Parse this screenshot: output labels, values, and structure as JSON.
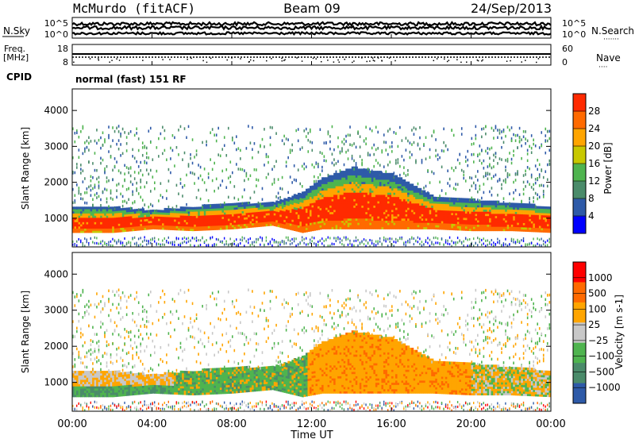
{
  "header": {
    "station": "McMurdo (fitACF)",
    "beam": "Beam 09",
    "date": "24/Sep/2013"
  },
  "top_panels": {
    "nsky_label": "N.Sky",
    "nsearch_label": "N.Search",
    "nsky_ticks": [
      "10^5",
      "10^0"
    ],
    "nsearch_ticks": [
      "10^5",
      "10^0"
    ],
    "freq_label_1": "Freq.",
    "freq_label_2": "[MHz]",
    "freq_ticks": [
      "18",
      "8"
    ],
    "nave_label": "Nave",
    "nave_ticks": [
      "60",
      "0"
    ],
    "cpid_label": "CPID",
    "cpid_value": "normal (fast) 151 RF"
  },
  "time_axis": {
    "label": "Time UT",
    "ticks": [
      "00:00",
      "04:00",
      "08:00",
      "12:00",
      "16:00",
      "20:00",
      "00:00"
    ]
  },
  "colors": {
    "power": [
      "#0000ff",
      "#2e5aa8",
      "#4a8b6a",
      "#4fb44f",
      "#c8c800",
      "#ffa500",
      "#ff6a00",
      "#ff2a00"
    ],
    "velocity": [
      "#ff0000",
      "#ff6a00",
      "#ffa500",
      "#c8c8c8",
      "#4fb44f",
      "#4a8b6a",
      "#2e5aa8"
    ]
  },
  "chart_data": [
    {
      "type": "heatmap",
      "ylabel": "Slant Range [km]",
      "xlabel": "Time UT",
      "ylim": [
        200,
        4600
      ],
      "yticks": [
        1000,
        2000,
        3000,
        4000
      ],
      "xlim": [
        0,
        24
      ],
      "colorbar": {
        "label": "Power [dB]",
        "ticks": [
          "4",
          "8",
          "12",
          "16",
          "20",
          "24",
          "28"
        ]
      },
      "main_echo_band": {
        "x": [
          0,
          2,
          4,
          6,
          8,
          10,
          11.5,
          12.5,
          14,
          16,
          18,
          20,
          22,
          24
        ],
        "lower_km": [
          600,
          600,
          700,
          650,
          700,
          800,
          600,
          700,
          700,
          700,
          700,
          650,
          650,
          600
        ],
        "upper_km": [
          1300,
          1300,
          1200,
          1300,
          1400,
          1400,
          1700,
          2100,
          2400,
          2200,
          1600,
          1500,
          1400,
          1300
        ]
      }
    },
    {
      "type": "heatmap",
      "ylabel": "Slant Range [km]",
      "xlabel": "Time UT",
      "ylim": [
        200,
        4600
      ],
      "yticks": [
        1000,
        2000,
        3000,
        4000
      ],
      "xlim": [
        0,
        24
      ],
      "colorbar": {
        "label": "Velocity [m s-1]",
        "ticks": [
          "1000",
          "500",
          "100",
          "25",
          "−25",
          "−100",
          "−500",
          "−1000"
        ]
      }
    }
  ]
}
